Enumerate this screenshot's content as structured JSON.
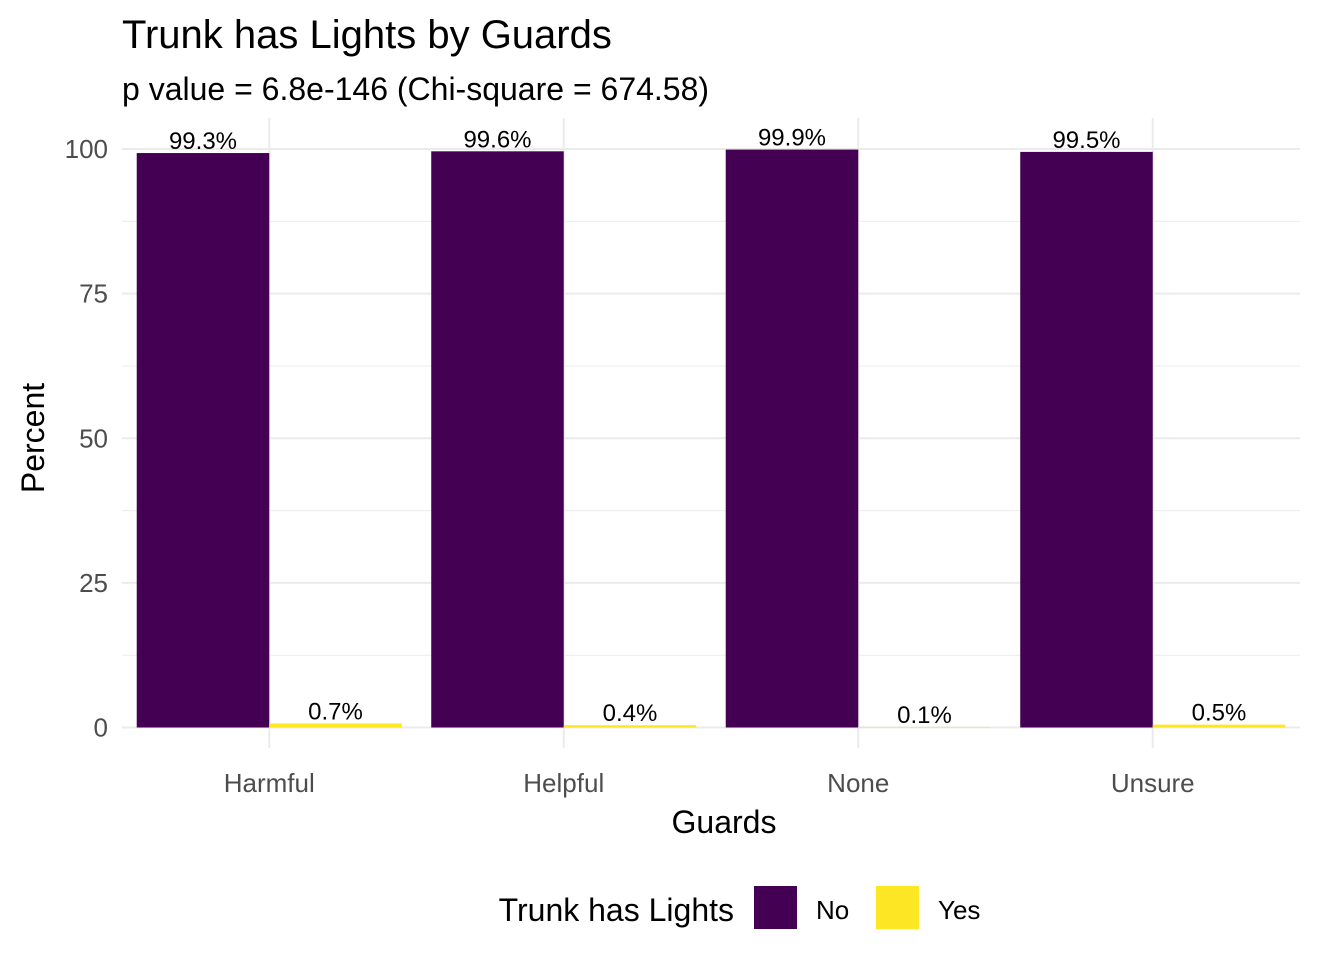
{
  "chart_data": {
    "type": "bar",
    "title": "Trunk has Lights by Guards",
    "subtitle": "p value = 6.8e-146 (Chi-square = 674.58)",
    "xlabel": "Guards",
    "ylabel": "Percent",
    "categories": [
      "Harmful",
      "Helpful",
      "None",
      "Unsure"
    ],
    "series": [
      {
        "name": "No",
        "color": "#440154",
        "values": [
          99.3,
          99.6,
          99.9,
          99.5
        ],
        "labels": [
          "99.3%",
          "99.6%",
          "99.9%",
          "99.5%"
        ]
      },
      {
        "name": "Yes",
        "color": "#FDE725",
        "values": [
          0.7,
          0.4,
          0.1,
          0.5
        ],
        "labels": [
          "0.7%",
          "0.4%",
          "0.1%",
          "0.5%"
        ]
      }
    ],
    "ylim": [
      0,
      100
    ],
    "yticks": [
      0,
      25,
      50,
      75,
      100
    ],
    "grid": true,
    "legend": {
      "title": "Trunk has Lights",
      "position": "bottom"
    }
  }
}
